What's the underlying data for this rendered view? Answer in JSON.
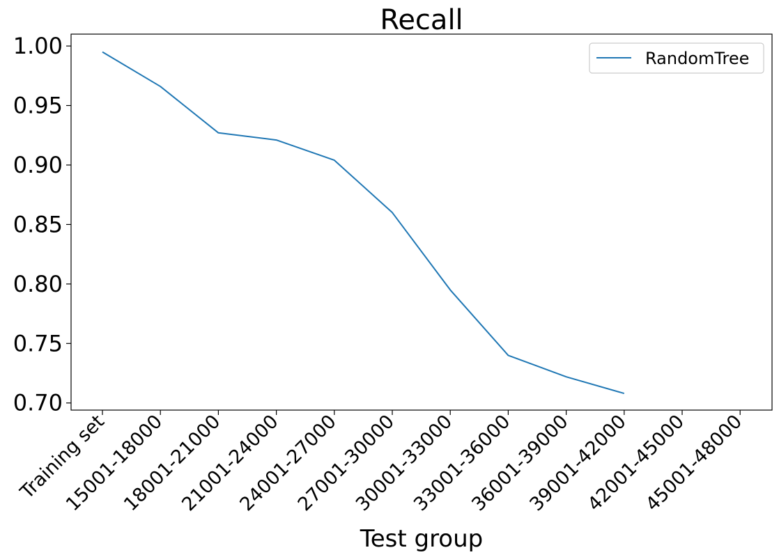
{
  "chart_data": {
    "type": "line",
    "title": "Recall",
    "xlabel": "Test group",
    "ylabel": "",
    "categories": [
      "Training set",
      "15001-18000",
      "18001-21000",
      "21001-24000",
      "24001-27000",
      "27001-30000",
      "30001-33000",
      "33001-36000",
      "36001-39000",
      "39001-42000",
      "42001-45000",
      "45001-48000"
    ],
    "series": [
      {
        "name": "RandomTree",
        "color": "#1f77b4",
        "values": [
          0.995,
          0.966,
          0.927,
          0.921,
          0.904,
          0.86,
          0.795,
          0.74,
          0.722,
          0.708,
          null,
          null
        ]
      }
    ],
    "yticks": [
      "0.70",
      "0.75",
      "0.80",
      "0.85",
      "0.90",
      "0.95",
      "1.00"
    ],
    "ylim": [
      0.694,
      1.01
    ],
    "grid": false,
    "legend_position": "top-right"
  }
}
